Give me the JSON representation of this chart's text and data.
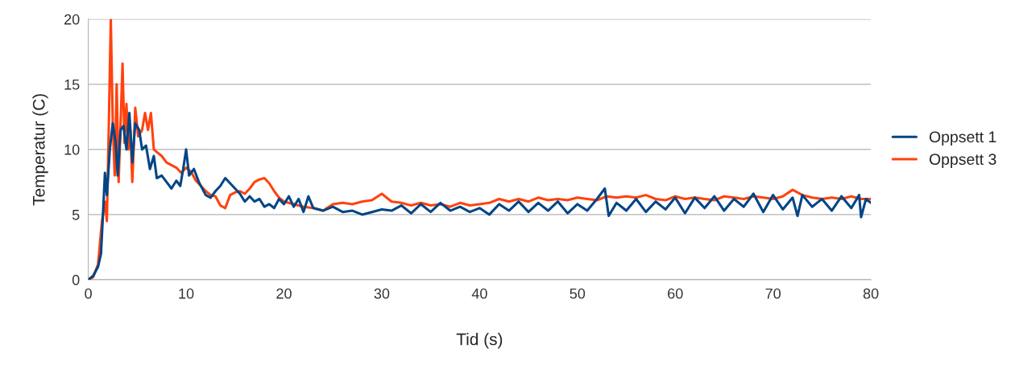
{
  "chart_data": {
    "type": "line",
    "xlabel": "Tid (s)",
    "ylabel": "Temperatur (C)",
    "xlim": [
      0,
      80
    ],
    "ylim": [
      0,
      20
    ],
    "xticks": [
      0,
      10,
      20,
      30,
      40,
      50,
      60,
      70,
      80
    ],
    "yticks": [
      0,
      5,
      10,
      15,
      20
    ],
    "grid": "y",
    "legend": "right",
    "marker": "none",
    "line_style": "solid",
    "series": [
      {
        "name": "Oppsett 1",
        "color": "#004586",
        "x": [
          0,
          0.5,
          1.0,
          1.3,
          1.5,
          1.7,
          1.9,
          2.2,
          2.5,
          2.8,
          3.0,
          3.3,
          3.6,
          3.9,
          4.2,
          4.5,
          4.8,
          5.2,
          5.5,
          5.9,
          6.3,
          6.7,
          7.0,
          7.5,
          8,
          8.5,
          9,
          9.4,
          9.7,
          10,
          10.3,
          10.8,
          11.3,
          12,
          12.5,
          13,
          13.5,
          14,
          14.5,
          15,
          15.5,
          16,
          16.5,
          17,
          17.5,
          18,
          18.5,
          19,
          19.5,
          20,
          20.5,
          21,
          21.5,
          22,
          22.5,
          23,
          24,
          25,
          26,
          27,
          28,
          29,
          30,
          31,
          32,
          33,
          34,
          35,
          36,
          37,
          38,
          39,
          40,
          41,
          42,
          43,
          44,
          45,
          46,
          47,
          48,
          49,
          50,
          51,
          52,
          52.8,
          53.2,
          54,
          55,
          56,
          57,
          58,
          59,
          60,
          61,
          62,
          63,
          64,
          65,
          66,
          67,
          68,
          69,
          70,
          71,
          72,
          72.5,
          73,
          74,
          75,
          76,
          77,
          78,
          78.8,
          79,
          79.5,
          80
        ],
        "values": [
          0,
          0.3,
          1,
          2,
          5,
          8.2,
          6.5,
          10,
          12,
          10.5,
          8,
          11.5,
          11.8,
          10,
          12.8,
          9,
          12,
          11.5,
          10,
          10.3,
          8.5,
          9.5,
          7.8,
          8,
          7.5,
          7,
          7.6,
          7.2,
          8.5,
          10,
          8,
          8.5,
          7.5,
          6.5,
          6.3,
          6.8,
          7.2,
          7.8,
          7.4,
          7,
          6.6,
          6,
          6.4,
          6,
          6.2,
          5.6,
          5.8,
          5.5,
          6.2,
          5.8,
          6.4,
          5.6,
          6.2,
          5.2,
          6.4,
          5.5,
          5.3,
          5.6,
          5.2,
          5.3,
          5.0,
          5.2,
          5.4,
          5.3,
          5.7,
          5.1,
          5.8,
          5.2,
          5.9,
          5.3,
          5.6,
          5.2,
          5.5,
          5.0,
          5.8,
          5.3,
          6.0,
          5.2,
          5.9,
          5.3,
          6.0,
          5.1,
          5.8,
          5.3,
          6.2,
          7.0,
          4.9,
          5.9,
          5.3,
          6.2,
          5.2,
          6.0,
          5.4,
          6.3,
          5.1,
          6.3,
          5.5,
          6.4,
          5.3,
          6.2,
          5.6,
          6.6,
          5.2,
          6.5,
          5.4,
          6.3,
          4.9,
          6.5,
          5.6,
          6.2,
          5.3,
          6.4,
          5.5,
          6.5,
          4.8,
          6.2,
          5.9
        ]
      },
      {
        "name": "Oppsett 3",
        "color": "#ff420e",
        "x": [
          0,
          0.5,
          1.0,
          1.4,
          1.7,
          1.9,
          2.1,
          2.3,
          2.5,
          2.7,
          2.9,
          3.1,
          3.3,
          3.5,
          3.7,
          3.9,
          4.1,
          4.3,
          4.5,
          4.8,
          5.1,
          5.5,
          5.8,
          6.1,
          6.4,
          6.7,
          7,
          7.5,
          8,
          8.5,
          9,
          9.5,
          10,
          10.5,
          11,
          11.5,
          12,
          12.5,
          13,
          13.5,
          14,
          14.5,
          15,
          15.5,
          16,
          16.5,
          17,
          17.5,
          18,
          18.5,
          19,
          19.5,
          20,
          21,
          22,
          23,
          24,
          25,
          26,
          27,
          28,
          29,
          30,
          31,
          32,
          33,
          34,
          35,
          36,
          37,
          38,
          39,
          40,
          41,
          42,
          43,
          44,
          45,
          46,
          47,
          48,
          49,
          50,
          51,
          52,
          53,
          54,
          55,
          56,
          57,
          58,
          59,
          60,
          61,
          62,
          63,
          64,
          65,
          66,
          67,
          68,
          69,
          70,
          71,
          72,
          73,
          74,
          75,
          76,
          77,
          78,
          79,
          80
        ],
        "values": [
          0,
          0.2,
          1.2,
          4.5,
          6,
          4.5,
          12,
          20.0,
          12,
          8,
          15,
          7.5,
          12,
          16.6,
          10.5,
          13.5,
          10,
          11.5,
          7.5,
          13.2,
          11,
          11.5,
          12.8,
          11.5,
          12.8,
          10,
          9.8,
          9.5,
          9,
          8.8,
          8.6,
          8.2,
          8.6,
          8.3,
          7.6,
          7.2,
          6.8,
          6.5,
          6.4,
          5.7,
          5.5,
          6.5,
          6.7,
          6.8,
          6.6,
          7.0,
          7.5,
          7.7,
          7.8,
          7.4,
          6.8,
          6.3,
          6.0,
          5.8,
          5.6,
          5.5,
          5.3,
          5.8,
          5.9,
          5.8,
          6.0,
          6.1,
          6.6,
          6.0,
          5.9,
          5.7,
          5.9,
          5.7,
          5.8,
          5.6,
          5.9,
          5.7,
          5.8,
          5.9,
          6.2,
          6.0,
          6.2,
          6.0,
          6.3,
          6.1,
          6.2,
          6.1,
          6.3,
          6.2,
          6.1,
          6.4,
          6.3,
          6.4,
          6.3,
          6.5,
          6.2,
          6.1,
          6.4,
          6.2,
          6.3,
          6.2,
          6.1,
          6.4,
          6.3,
          6.2,
          6.4,
          6.3,
          6.2,
          6.4,
          6.9,
          6.5,
          6.3,
          6.2,
          6.3,
          6.2,
          6.4,
          6.2,
          6.2
        ]
      }
    ]
  }
}
